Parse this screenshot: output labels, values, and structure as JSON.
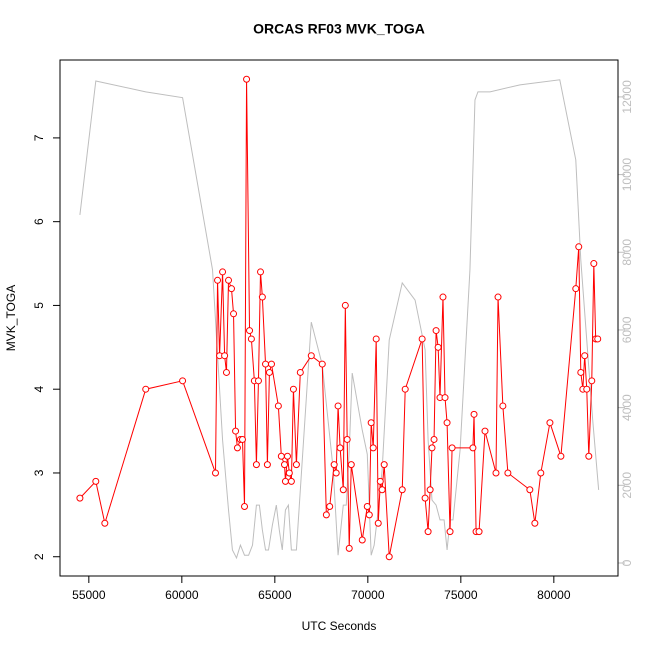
{
  "chart_data": {
    "type": "line",
    "title": "ORCAS RF03 MVK_TOGA",
    "xlabel": "UTC Seconds",
    "ylabel": "MVK_TOGA",
    "xlim": [
      53450,
      83450
    ],
    "xticks": [
      55000,
      60000,
      65000,
      70000,
      75000,
      80000
    ],
    "ylim": [
      1.77,
      7.93
    ],
    "yticks": [
      2,
      3,
      4,
      5,
      6,
      7
    ],
    "y2lim": [
      -335,
      12950
    ],
    "y2ticks": [
      0,
      2000,
      4000,
      6000,
      8000,
      10000,
      12000
    ],
    "series": [
      {
        "color": "#ff0000",
        "markers": true,
        "x": [
          54520,
          55375,
          55860,
          58060,
          60040,
          61810,
          61920,
          62030,
          62190,
          62300,
          62400,
          62510,
          62670,
          62780,
          62890,
          62990,
          63150,
          63260,
          63370,
          63480,
          63640,
          63740,
          63900,
          64010,
          64120,
          64230,
          64330,
          64500,
          64600,
          64710,
          64820,
          65190,
          65350,
          65520,
          65570,
          65680,
          65780,
          65890,
          66000,
          66160,
          66370,
          66960,
          67550,
          67770,
          67950,
          68190,
          68300,
          68400,
          68510,
          68680,
          68790,
          68890,
          69000,
          69110,
          69700,
          69970,
          70080,
          70180,
          70290,
          70450,
          70560,
          70670,
          70770,
          70880,
          71150,
          71850,
          72010,
          72920,
          73080,
          73240,
          73350,
          73450,
          73560,
          73670,
          73780,
          73880,
          74040,
          74150,
          74260,
          74420,
          74530,
          75650,
          75710,
          75820,
          75980,
          76300,
          76890,
          77000,
          77260,
          77530,
          78710,
          78980,
          79300,
          79790,
          80380,
          81180,
          81340,
          81450,
          81560,
          81660,
          81770,
          81880,
          82040,
          82150,
          82250,
          82360
        ],
        "values": [
          2.7,
          2.9,
          2.4,
          4.0,
          4.1,
          3.0,
          5.3,
          4.4,
          5.4,
          4.4,
          4.2,
          5.3,
          5.2,
          4.9,
          3.5,
          3.3,
          3.4,
          3.4,
          2.6,
          7.7,
          4.7,
          4.6,
          4.1,
          3.1,
          4.1,
          5.4,
          5.1,
          4.3,
          3.1,
          4.2,
          4.3,
          3.8,
          3.2,
          3.1,
          2.9,
          3.2,
          3.0,
          2.9,
          4.0,
          3.1,
          4.2,
          4.4,
          4.3,
          2.5,
          2.6,
          3.1,
          3.0,
          3.8,
          3.3,
          2.8,
          5.0,
          3.4,
          2.1,
          3.1,
          2.2,
          2.6,
          2.5,
          3.6,
          3.3,
          4.6,
          2.4,
          2.9,
          2.8,
          3.1,
          2.0,
          2.8,
          4.0,
          4.6,
          2.7,
          2.3,
          2.8,
          3.3,
          3.4,
          4.7,
          4.5,
          3.9,
          5.1,
          3.9,
          3.6,
          2.3,
          3.3,
          3.3,
          3.7,
          2.3,
          2.3,
          3.5,
          3.0,
          5.1,
          3.8,
          3.0,
          2.8,
          2.4,
          3.0,
          3.6,
          3.2,
          5.2,
          5.7,
          4.2,
          4.0,
          4.4,
          4.0,
          3.2,
          4.1,
          5.5,
          4.6,
          4.6
        ]
      },
      {
        "color": "#bebebe",
        "axis": "y2",
        "x": [
          54520,
          55375,
          58060,
          60040,
          61650,
          62190,
          62510,
          62720,
          62940,
          63150,
          63370,
          63590,
          63800,
          64010,
          64170,
          64330,
          64500,
          64660,
          64870,
          65080,
          65240,
          65400,
          65570,
          65730,
          65890,
          66160,
          66960,
          67550,
          68140,
          68400,
          68680,
          68840,
          69000,
          69160,
          69700,
          69970,
          70180,
          70340,
          70560,
          70770,
          71150,
          71850,
          72540,
          73080,
          73240,
          73450,
          73670,
          73880,
          74100,
          74260,
          74420,
          74580,
          74960,
          75490,
          75760,
          75920,
          76570,
          78180,
          80320,
          81180,
          81450,
          81770,
          82090,
          82410
        ],
        "values": [
          8960,
          12410,
          12130,
          11980,
          7550,
          3170,
          1365,
          335,
          130,
          460,
          200,
          200,
          460,
          1490,
          1490,
          850,
          335,
          335,
          980,
          1490,
          850,
          335,
          1365,
          1490,
          335,
          335,
          6200,
          5100,
          2400,
          200,
          1490,
          1490,
          2900,
          4890,
          3420,
          2800,
          200,
          460,
          1365,
          2400,
          5740,
          7210,
          6770,
          5490,
          3170,
          1620,
          1490,
          1110,
          1110,
          335,
          1110,
          1110,
          2910,
          7550,
          11920,
          12130,
          12130,
          12310,
          12440,
          10380,
          7800,
          5740,
          3680,
          1880
        ]
      }
    ]
  }
}
